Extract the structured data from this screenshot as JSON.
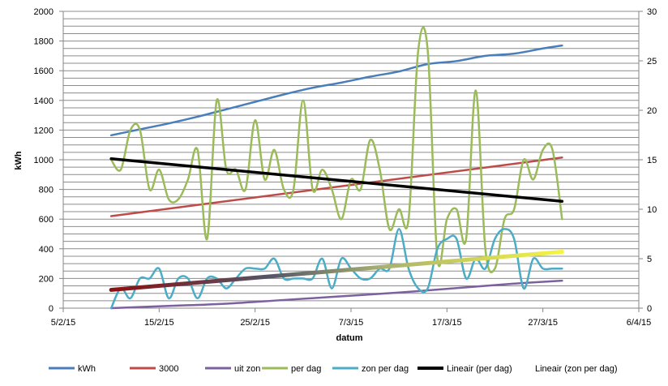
{
  "chart_data": {
    "type": "line",
    "xlabel": "datum",
    "ylabel": "kWh",
    "x_ticks": [
      "5/2/15",
      "15/2/15",
      "25/2/15",
      "7/3/15",
      "17/3/15",
      "27/3/15",
      "6/4/15"
    ],
    "y_left_ticks": [
      "0",
      "200",
      "400",
      "600",
      "800",
      "1000",
      "1200",
      "1400",
      "1600",
      "1800",
      "2000"
    ],
    "y_right_ticks": [
      "0",
      "5",
      "10",
      "15",
      "20",
      "25",
      "30"
    ],
    "y_left_range": [
      0,
      2000
    ],
    "y_right_range": [
      0,
      30
    ],
    "x_range": [
      "2015-02-05",
      "2015-04-06"
    ],
    "grid": true,
    "legend_position": "bottom",
    "series": [
      {
        "name": "kWh",
        "axis": "left",
        "color": "#4a7ebb",
        "smooth": true,
        "x": [
          "2015-02-10",
          "2015-02-13",
          "2015-02-16",
          "2015-02-19",
          "2015-02-22",
          "2015-02-25",
          "2015-02-28",
          "2015-03-03",
          "2015-03-06",
          "2015-03-09",
          "2015-03-12",
          "2015-03-15",
          "2015-03-18",
          "2015-03-21",
          "2015-03-24",
          "2015-03-27",
          "2015-03-29"
        ],
        "y": [
          1165,
          1205,
          1245,
          1290,
          1340,
          1390,
          1440,
          1485,
          1520,
          1560,
          1595,
          1645,
          1665,
          1700,
          1715,
          1750,
          1770
        ]
      },
      {
        "name": "3000",
        "axis": "left",
        "color": "#be4b48",
        "smooth": false,
        "x": [
          "2015-02-10",
          "2015-03-29"
        ],
        "y": [
          620,
          1015
        ]
      },
      {
        "name": "uit zon",
        "axis": "left",
        "color": "#7d60a0",
        "smooth": true,
        "x": [
          "2015-02-10",
          "2015-02-16",
          "2015-02-22",
          "2015-02-28",
          "2015-03-06",
          "2015-03-12",
          "2015-03-18",
          "2015-03-24",
          "2015-03-29"
        ],
        "y": [
          0,
          15,
          30,
          55,
          80,
          105,
          135,
          165,
          185
        ]
      },
      {
        "name": "per dag",
        "axis": "right",
        "color": "#9bbb59",
        "smooth": true,
        "x": [
          "2015-02-10",
          "2015-02-11",
          "2015-02-12",
          "2015-02-13",
          "2015-02-14",
          "2015-02-15",
          "2015-02-16",
          "2015-02-17",
          "2015-02-18",
          "2015-02-19",
          "2015-02-20",
          "2015-02-21",
          "2015-02-22",
          "2015-02-23",
          "2015-02-24",
          "2015-02-25",
          "2015-02-26",
          "2015-02-27",
          "2015-02-28",
          "2015-03-01",
          "2015-03-02",
          "2015-03-03",
          "2015-03-04",
          "2015-03-05",
          "2015-03-06",
          "2015-03-07",
          "2015-03-08",
          "2015-03-09",
          "2015-03-10",
          "2015-03-11",
          "2015-03-12",
          "2015-03-13",
          "2015-03-14",
          "2015-03-15",
          "2015-03-16",
          "2015-03-17",
          "2015-03-18",
          "2015-03-19",
          "2015-03-20",
          "2015-03-21",
          "2015-03-22",
          "2015-03-23",
          "2015-03-24",
          "2015-03-25",
          "2015-03-26",
          "2015-03-27",
          "2015-03-28",
          "2015-03-29"
        ],
        "y": [
          15,
          14,
          18,
          18,
          12,
          14,
          11,
          11,
          13,
          16,
          7,
          21,
          14,
          14,
          12,
          19,
          13,
          16,
          12,
          12,
          21,
          12,
          14,
          12,
          9,
          13,
          12,
          17,
          14,
          8,
          10,
          9,
          26,
          26,
          5,
          9,
          10,
          7,
          22,
          6,
          4,
          9,
          10,
          15,
          13,
          16,
          16,
          9
        ]
      },
      {
        "name": "zon per dag",
        "axis": "right",
        "color": "#4bacc6",
        "smooth": true,
        "x": [
          "2015-02-10",
          "2015-02-11",
          "2015-02-12",
          "2015-02-13",
          "2015-02-14",
          "2015-02-15",
          "2015-02-16",
          "2015-02-17",
          "2015-02-18",
          "2015-02-19",
          "2015-02-20",
          "2015-02-21",
          "2015-02-22",
          "2015-02-23",
          "2015-02-24",
          "2015-02-25",
          "2015-02-26",
          "2015-02-27",
          "2015-02-28",
          "2015-03-01",
          "2015-03-02",
          "2015-03-03",
          "2015-03-04",
          "2015-03-05",
          "2015-03-06",
          "2015-03-07",
          "2015-03-08",
          "2015-03-09",
          "2015-03-10",
          "2015-03-11",
          "2015-03-12",
          "2015-03-13",
          "2015-03-14",
          "2015-03-15",
          "2015-03-16",
          "2015-03-17",
          "2015-03-18",
          "2015-03-19",
          "2015-03-20",
          "2015-03-21",
          "2015-03-22",
          "2015-03-23",
          "2015-03-24",
          "2015-03-25",
          "2015-03-26",
          "2015-03-27",
          "2015-03-28",
          "2015-03-29"
        ],
        "y": [
          0,
          2,
          1,
          3,
          3,
          4,
          1,
          3,
          3,
          1,
          3,
          3,
          2,
          3,
          4,
          4,
          4,
          5,
          3,
          3,
          3,
          3,
          5,
          2,
          5,
          4,
          3,
          3,
          4,
          4,
          8,
          4,
          2,
          2,
          6,
          7,
          7,
          3,
          5,
          4,
          7,
          8,
          7,
          2,
          5,
          4,
          4,
          4
        ]
      },
      {
        "name": "Lineair (per dag)",
        "axis": "right",
        "color": "#000000",
        "smooth": false,
        "x": [
          "2015-02-10",
          "2015-03-29"
        ],
        "y": [
          15.1,
          10.8
        ]
      },
      {
        "name": "Lineair (zon per dag)",
        "axis": "right",
        "color": "#f5f542",
        "color_start": "#8b1010",
        "smooth": false,
        "x": [
          "2015-02-10",
          "2015-03-29"
        ],
        "y": [
          1.85,
          5.7
        ]
      }
    ]
  }
}
